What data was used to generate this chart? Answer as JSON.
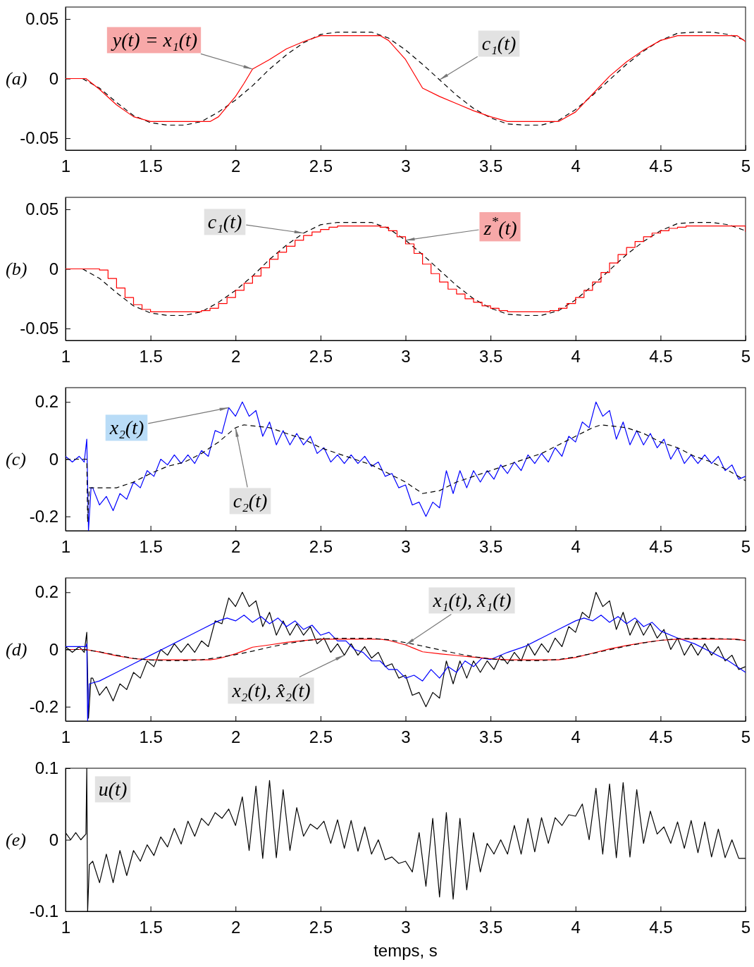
{
  "chart_data": [
    {
      "type": "line",
      "title": "(a)",
      "xlim": [
        1,
        5
      ],
      "xticks": [
        1,
        1.5,
        2,
        2.5,
        3,
        3.5,
        4,
        4.5,
        5
      ],
      "ylim": [
        -0.06,
        0.06
      ],
      "yticks": [
        -0.05,
        0,
        0.05
      ],
      "series": [
        {
          "color": "#000000",
          "line_style": "dashed",
          "x": [
            1,
            1.1,
            1.2,
            1.3,
            1.4,
            1.5,
            1.6,
            1.7,
            1.8,
            1.9,
            2,
            2.1,
            2.2,
            2.3,
            2.4,
            2.5,
            2.6,
            2.7,
            2.8,
            2.9,
            3,
            3.1,
            3.2,
            3.3,
            3.4,
            3.5,
            3.6,
            3.7,
            3.8,
            3.9,
            4,
            4.1,
            4.2,
            4.3,
            4.4,
            4.5,
            4.6,
            4.7,
            4.8,
            4.9,
            5
          ],
          "values": [
            0,
            0,
            -0.008,
            -0.02,
            -0.031,
            -0.037,
            -0.039,
            -0.039,
            -0.036,
            -0.028,
            -0.018,
            -0.006,
            0.008,
            0.02,
            0.03,
            0.037,
            0.039,
            0.039,
            0.039,
            0.034,
            0.024,
            0.012,
            -0.001,
            -0.014,
            -0.025,
            -0.033,
            -0.038,
            -0.039,
            -0.039,
            -0.035,
            -0.026,
            -0.014,
            -0.001,
            0.012,
            0.023,
            0.032,
            0.038,
            0.039,
            0.039,
            0.037,
            0.032
          ]
        },
        {
          "color": "#ff0000",
          "x": [
            1,
            1.12,
            1.2,
            1.3,
            1.4,
            1.5,
            1.85,
            1.9,
            2,
            2.05,
            2.1,
            2.2,
            2.3,
            2.4,
            2.5,
            2.85,
            2.9,
            3,
            3.05,
            3.1,
            3.2,
            3.3,
            3.4,
            3.5,
            3.6,
            3.9,
            4,
            4.1,
            4.2,
            4.3,
            4.4,
            4.5,
            4.6,
            4.95,
            5
          ],
          "values": [
            0,
            0,
            -0.009,
            -0.022,
            -0.032,
            -0.036,
            -0.036,
            -0.032,
            -0.015,
            -0.004,
            0.008,
            0.016,
            0.025,
            0.031,
            0.036,
            0.036,
            0.032,
            0.016,
            0.004,
            -0.008,
            -0.015,
            -0.021,
            -0.027,
            -0.032,
            -0.036,
            -0.036,
            -0.028,
            -0.013,
            0.002,
            0.014,
            0.024,
            0.032,
            0.036,
            0.036,
            0.031
          ]
        }
      ],
      "annotations": [
        {
          "text": "y(t) = x₁(t)",
          "x": 2.1,
          "y": 0.008
        },
        {
          "text": "c₁(t)",
          "x": 3.2,
          "y": -0.001
        }
      ]
    },
    {
      "type": "line",
      "title": "(b)",
      "xlim": [
        1,
        5
      ],
      "xticks": [
        1,
        1.5,
        2,
        2.5,
        3,
        3.5,
        4,
        4.5,
        5
      ],
      "ylim": [
        -0.06,
        0.06
      ],
      "yticks": [
        -0.05,
        0,
        0.05
      ],
      "series": [
        {
          "color": "#000000",
          "line_style": "dashed",
          "x": [
            1,
            1.1,
            1.2,
            1.3,
            1.4,
            1.5,
            1.6,
            1.7,
            1.8,
            1.9,
            2,
            2.1,
            2.2,
            2.3,
            2.4,
            2.5,
            2.6,
            2.7,
            2.8,
            2.9,
            3,
            3.1,
            3.2,
            3.3,
            3.4,
            3.5,
            3.6,
            3.7,
            3.8,
            3.9,
            4,
            4.1,
            4.2,
            4.3,
            4.4,
            4.5,
            4.6,
            4.7,
            4.8,
            4.9,
            5
          ],
          "values": [
            0,
            0,
            -0.008,
            -0.02,
            -0.031,
            -0.037,
            -0.039,
            -0.039,
            -0.036,
            -0.028,
            -0.018,
            -0.006,
            0.008,
            0.02,
            0.03,
            0.037,
            0.039,
            0.039,
            0.039,
            0.034,
            0.024,
            0.012,
            -0.001,
            -0.014,
            -0.025,
            -0.033,
            -0.038,
            -0.039,
            -0.039,
            -0.035,
            -0.026,
            -0.014,
            -0.001,
            0.012,
            0.023,
            0.032,
            0.038,
            0.039,
            0.039,
            0.037,
            0.032
          ]
        },
        {
          "type": "step",
          "color": "#ff0000",
          "x": [
            1,
            1.05,
            1.1,
            1.15,
            1.2,
            1.25,
            1.3,
            1.35,
            1.4,
            1.45,
            1.5,
            1.55,
            1.6,
            1.65,
            1.7,
            1.75,
            1.8,
            1.85,
            1.9,
            1.95,
            2,
            2.05,
            2.1,
            2.15,
            2.2,
            2.25,
            2.3,
            2.35,
            2.4,
            2.45,
            2.5,
            2.55,
            2.6,
            2.65,
            2.7,
            2.75,
            2.8,
            2.85,
            2.9,
            2.95,
            3,
            3.05,
            3.1,
            3.15,
            3.2,
            3.25,
            3.3,
            3.35,
            3.4,
            3.45,
            3.5,
            3.55,
            3.6,
            3.65,
            3.7,
            3.75,
            3.8,
            3.85,
            3.9,
            3.95,
            4,
            4.05,
            4.1,
            4.15,
            4.2,
            4.25,
            4.3,
            4.35,
            4.4,
            4.45,
            4.5,
            4.55,
            4.6,
            4.65,
            4.7,
            4.75,
            4.8,
            4.85,
            4.9,
            4.95,
            5
          ],
          "values": [
            0,
            0,
            0,
            0,
            -0.001,
            -0.008,
            -0.016,
            -0.024,
            -0.03,
            -0.034,
            -0.036,
            -0.036,
            -0.036,
            -0.036,
            -0.036,
            -0.036,
            -0.035,
            -0.033,
            -0.029,
            -0.024,
            -0.018,
            -0.012,
            -0.006,
            0.001,
            0.008,
            0.014,
            0.019,
            0.024,
            0.028,
            0.031,
            0.033,
            0.035,
            0.036,
            0.036,
            0.036,
            0.036,
            0.036,
            0.035,
            0.032,
            0.027,
            0.021,
            0.013,
            0.004,
            -0.004,
            -0.011,
            -0.017,
            -0.021,
            -0.025,
            -0.028,
            -0.031,
            -0.033,
            -0.035,
            -0.036,
            -0.036,
            -0.036,
            -0.036,
            -0.036,
            -0.035,
            -0.033,
            -0.029,
            -0.024,
            -0.018,
            -0.011,
            -0.003,
            0.005,
            0.012,
            0.018,
            0.023,
            0.027,
            0.03,
            0.032,
            0.034,
            0.035,
            0.036,
            0.036,
            0.036,
            0.036,
            0.036,
            0.036,
            0.036,
            0.031
          ]
        }
      ],
      "annotations": [
        {
          "text": "c₁(t)",
          "x": 2.4,
          "y": 0.03
        },
        {
          "text": "z$^{*}$(t)",
          "x": 3,
          "y": 0.024
        }
      ]
    },
    {
      "type": "line",
      "title": "(c)",
      "xlim": [
        1,
        5
      ],
      "xticks": [
        1,
        1.5,
        2,
        2.5,
        3,
        3.5,
        4,
        4.5,
        5
      ],
      "ylim": [
        -0.25,
        0.25
      ],
      "yticks": [
        -0.2,
        0,
        0.2
      ],
      "series": [
        {
          "color": "#0000ff",
          "x": [
            1,
            1.04,
            1.08,
            1.11,
            1.125,
            1.135,
            1.15,
            1.16,
            1.2,
            1.24,
            1.28,
            1.32,
            1.36,
            1.4,
            1.44,
            1.48,
            1.52,
            1.56,
            1.6,
            1.64,
            1.68,
            1.72,
            1.76,
            1.8,
            1.84,
            1.88,
            1.92,
            1.96,
            2,
            2.04,
            2.08,
            2.12,
            2.16,
            2.2,
            2.24,
            2.28,
            2.32,
            2.36,
            2.4,
            2.44,
            2.48,
            2.52,
            2.56,
            2.6,
            2.64,
            2.68,
            2.72,
            2.76,
            2.8,
            2.84,
            2.88,
            2.92,
            2.96,
            3,
            3.04,
            3.08,
            3.12,
            3.16,
            3.2,
            3.24,
            3.28,
            3.32,
            3.36,
            3.4,
            3.44,
            3.48,
            3.52,
            3.56,
            3.6,
            3.64,
            3.68,
            3.72,
            3.76,
            3.8,
            3.84,
            3.88,
            3.92,
            3.96,
            4,
            4.04,
            4.08,
            4.12,
            4.16,
            4.2,
            4.24,
            4.28,
            4.32,
            4.36,
            4.4,
            4.44,
            4.48,
            4.52,
            4.56,
            4.6,
            4.64,
            4.68,
            4.72,
            4.76,
            4.8,
            4.84,
            4.88,
            4.92,
            4.96,
            5
          ],
          "values": [
            0.01,
            -0.01,
            0.01,
            -0.01,
            0.07,
            -0.25,
            -0.1,
            -0.1,
            -0.16,
            -0.13,
            -0.18,
            -0.12,
            -0.14,
            -0.08,
            -0.1,
            -0.04,
            -0.06,
            0,
            -0.02,
            0.015,
            -0.015,
            0.015,
            -0.015,
            0.03,
            0.01,
            0.1,
            0.09,
            0.18,
            0.15,
            0.2,
            0.15,
            0.17,
            0.08,
            0.13,
            0.05,
            0.1,
            0.05,
            0.09,
            0.05,
            0.08,
            0.02,
            0.04,
            -0.01,
            0.015,
            -0.015,
            0.015,
            -0.015,
            0.01,
            -0.025,
            -0.01,
            -0.06,
            -0.05,
            -0.1,
            -0.09,
            -0.16,
            -0.15,
            -0.2,
            -0.15,
            -0.17,
            -0.04,
            -0.12,
            -0.04,
            -0.1,
            -0.04,
            -0.08,
            -0.04,
            -0.07,
            -0.02,
            -0.05,
            -0.01,
            -0.04,
            0.015,
            -0.015,
            0.02,
            -0.01,
            0.04,
            0.01,
            0.08,
            0.06,
            0.13,
            0.11,
            0.2,
            0.15,
            0.17,
            0.07,
            0.13,
            0.05,
            0.1,
            0.05,
            0.09,
            0.04,
            0.07,
            0,
            0.04,
            -0.015,
            0.015,
            -0.015,
            0.015,
            -0.015,
            0.01,
            -0.04,
            -0.02,
            -0.07,
            -0.06
          ]
        },
        {
          "color": "#000000",
          "line_style": "dashed",
          "x": [
            1,
            1.125,
            1.13,
            1.14,
            1.2,
            1.3,
            1.4,
            1.5,
            1.6,
            1.7,
            1.8,
            1.9,
            2,
            2.05,
            2.2,
            2.3,
            2.4,
            2.5,
            2.6,
            2.7,
            2.8,
            2.9,
            3,
            3.1,
            3.2,
            3.3,
            3.4,
            3.5,
            3.6,
            3.7,
            3.8,
            3.9,
            4,
            4.1,
            4.15,
            4.3,
            4.4,
            4.5,
            4.6,
            4.7,
            4.8,
            4.9,
            5
          ],
          "values": [
            0,
            0,
            -0.22,
            -0.1,
            -0.1,
            -0.1,
            -0.08,
            -0.05,
            -0.025,
            -0.01,
            0.02,
            0.06,
            0.11,
            0.12,
            0.11,
            0.09,
            0.07,
            0.04,
            0.02,
            0,
            -0.02,
            -0.05,
            -0.08,
            -0.12,
            -0.11,
            -0.08,
            -0.06,
            -0.04,
            -0.02,
            0,
            0.02,
            0.05,
            0.08,
            0.11,
            0.12,
            0.11,
            0.09,
            0.06,
            0.04,
            0.01,
            -0.01,
            -0.04,
            -0.075
          ]
        }
      ],
      "annotations": [
        {
          "text": "x₂(t)",
          "x": 1.96,
          "y": 0.18
        },
        {
          "text": "c₂(t)",
          "x": 2,
          "y": 0.11
        }
      ]
    },
    {
      "type": "line",
      "title": "(d)",
      "xlim": [
        1,
        5
      ],
      "xticks": [
        1,
        1.5,
        2,
        2.5,
        3,
        3.5,
        4,
        4.5,
        5
      ],
      "ylim": [
        -0.25,
        0.25
      ],
      "yticks": [
        -0.2,
        0,
        0.2
      ],
      "series": [
        {
          "color": "#000000",
          "x": [
            1,
            1.04,
            1.08,
            1.11,
            1.125,
            1.135,
            1.15,
            1.16,
            1.2,
            1.24,
            1.28,
            1.32,
            1.36,
            1.4,
            1.44,
            1.48,
            1.52,
            1.56,
            1.6,
            1.64,
            1.68,
            1.72,
            1.76,
            1.8,
            1.84,
            1.88,
            1.92,
            1.96,
            2,
            2.04,
            2.08,
            2.12,
            2.16,
            2.2,
            2.24,
            2.28,
            2.32,
            2.36,
            2.4,
            2.44,
            2.48,
            2.52,
            2.56,
            2.6,
            2.64,
            2.68,
            2.72,
            2.76,
            2.8,
            2.84,
            2.88,
            2.92,
            2.96,
            3,
            3.04,
            3.08,
            3.12,
            3.16,
            3.2,
            3.24,
            3.28,
            3.32,
            3.36,
            3.4,
            3.44,
            3.48,
            3.52,
            3.56,
            3.6,
            3.64,
            3.68,
            3.72,
            3.76,
            3.8,
            3.84,
            3.88,
            3.92,
            3.96,
            4,
            4.04,
            4.08,
            4.12,
            4.16,
            4.2,
            4.24,
            4.28,
            4.32,
            4.36,
            4.4,
            4.44,
            4.48,
            4.52,
            4.56,
            4.6,
            4.64,
            4.68,
            4.72,
            4.76,
            4.8,
            4.84,
            4.88,
            4.92,
            4.96,
            5
          ],
          "values": [
            0.01,
            -0.01,
            0.01,
            -0.01,
            0.06,
            -0.24,
            -0.1,
            -0.1,
            -0.16,
            -0.13,
            -0.18,
            -0.12,
            -0.14,
            -0.08,
            -0.1,
            -0.04,
            -0.06,
            0,
            -0.02,
            0.02,
            -0.01,
            0.02,
            -0.01,
            0.03,
            0.01,
            0.1,
            0.09,
            0.18,
            0.15,
            0.2,
            0.15,
            0.17,
            0.08,
            0.13,
            0.05,
            0.1,
            0.05,
            0.09,
            0.05,
            0.08,
            0.02,
            0.04,
            -0.01,
            0.02,
            -0.02,
            0.02,
            -0.02,
            0.01,
            -0.03,
            -0.01,
            -0.06,
            -0.05,
            -0.1,
            -0.09,
            -0.16,
            -0.15,
            -0.2,
            -0.15,
            -0.17,
            -0.04,
            -0.12,
            -0.04,
            -0.1,
            -0.04,
            -0.08,
            -0.04,
            -0.07,
            -0.02,
            -0.05,
            -0.01,
            -0.04,
            0.02,
            -0.02,
            0.02,
            -0.01,
            0.04,
            0.01,
            0.08,
            0.06,
            0.13,
            0.11,
            0.2,
            0.15,
            0.17,
            0.07,
            0.13,
            0.05,
            0.1,
            0.05,
            0.09,
            0.04,
            0.07,
            0,
            0.04,
            -0.02,
            0.02,
            -0.02,
            0.02,
            -0.02,
            0.01,
            -0.04,
            -0.02,
            -0.07,
            -0.06
          ]
        },
        {
          "color": "#0000ff",
          "x": [
            1,
            1.12,
            1.125,
            1.13,
            1.14,
            1.2,
            1.3,
            1.4,
            1.5,
            1.6,
            1.7,
            1.8,
            1.9,
            1.95,
            2,
            2.05,
            2.1,
            2.15,
            2.2,
            2.25,
            2.3,
            2.35,
            2.4,
            2.45,
            2.5,
            2.55,
            2.6,
            2.65,
            2.7,
            2.75,
            2.8,
            2.85,
            2.9,
            2.95,
            3,
            3.05,
            3.1,
            3.15,
            3.2,
            3.25,
            3.3,
            3.35,
            3.4,
            3.45,
            3.5,
            3.6,
            3.7,
            3.8,
            3.9,
            4,
            4.05,
            4.1,
            4.15,
            4.2,
            4.25,
            4.3,
            4.35,
            4.4,
            4.45,
            4.5,
            4.6,
            4.7,
            4.8,
            4.9,
            5
          ],
          "values": [
            0.01,
            0.01,
            0.02,
            -0.25,
            -0.12,
            -0.11,
            -0.08,
            -0.05,
            -0.02,
            0.01,
            0.04,
            0.07,
            0.1,
            0.11,
            0.1,
            0.12,
            0.095,
            0.115,
            0.09,
            0.11,
            0.08,
            0.1,
            0.07,
            0.085,
            0.05,
            0.06,
            0.03,
            0.03,
            0,
            -0.01,
            -0.04,
            -0.04,
            -0.07,
            -0.07,
            -0.1,
            -0.09,
            -0.11,
            -0.07,
            -0.1,
            -0.06,
            -0.08,
            -0.04,
            -0.06,
            -0.03,
            -0.035,
            -0.01,
            0.01,
            0.04,
            0.07,
            0.1,
            0.11,
            0.1,
            0.12,
            0.095,
            0.115,
            0.09,
            0.11,
            0.08,
            0.095,
            0.065,
            0.04,
            0.02,
            -0.01,
            -0.04,
            -0.08
          ]
        },
        {
          "color": "#ff0000",
          "x": [
            1,
            1.12,
            1.2,
            1.3,
            1.4,
            1.5,
            1.85,
            1.9,
            2,
            2.05,
            2.1,
            2.2,
            2.3,
            2.4,
            2.5,
            2.85,
            2.9,
            3,
            3.05,
            3.1,
            3.2,
            3.3,
            3.4,
            3.5,
            3.6,
            3.9,
            4,
            4.1,
            4.2,
            4.3,
            4.4,
            4.5,
            4.6,
            4.95,
            5
          ],
          "values": [
            0,
            0,
            -0.009,
            -0.022,
            -0.032,
            -0.036,
            -0.036,
            -0.032,
            -0.015,
            -0.004,
            0.008,
            0.016,
            0.025,
            0.031,
            0.036,
            0.036,
            0.032,
            0.016,
            0.004,
            -0.008,
            -0.015,
            -0.021,
            -0.027,
            -0.032,
            -0.036,
            -0.036,
            -0.028,
            -0.013,
            0.002,
            0.014,
            0.024,
            0.032,
            0.036,
            0.036,
            0.031
          ]
        },
        {
          "color": "#000000",
          "line_style": "dashed",
          "x": [
            1,
            1.1,
            1.2,
            1.3,
            1.4,
            1.5,
            1.6,
            1.7,
            1.8,
            1.9,
            2,
            2.1,
            2.2,
            2.3,
            2.4,
            2.5,
            2.6,
            2.7,
            2.8,
            2.9,
            3,
            3.1,
            3.2,
            3.3,
            3.4,
            3.5,
            3.6,
            3.7,
            3.8,
            3.9,
            4,
            4.1,
            4.2,
            4.3,
            4.4,
            4.5,
            4.6,
            4.7,
            4.8,
            4.9,
            5
          ],
          "values": [
            0,
            0,
            -0.008,
            -0.02,
            -0.031,
            -0.037,
            -0.039,
            -0.039,
            -0.036,
            -0.028,
            -0.018,
            -0.006,
            0.008,
            0.02,
            0.03,
            0.037,
            0.039,
            0.039,
            0.039,
            0.034,
            0.024,
            0.012,
            -0.001,
            -0.014,
            -0.025,
            -0.033,
            -0.038,
            -0.039,
            -0.039,
            -0.035,
            -0.026,
            -0.014,
            -0.001,
            0.012,
            0.023,
            0.032,
            0.038,
            0.039,
            0.039,
            0.037,
            0.032
          ]
        }
      ],
      "annotations": [
        {
          "text": "x₁(t), x̂₁(t)",
          "x": 3,
          "y": 0.016
        },
        {
          "text": "x₂(t), x̂₂(t)",
          "x": 2.64,
          "y": -0.02
        }
      ]
    },
    {
      "type": "line",
      "title": "(e)",
      "xlabel": "temps, s",
      "xlim": [
        1,
        5
      ],
      "xticks": [
        1,
        1.5,
        2,
        2.5,
        3,
        3.5,
        4,
        4.5,
        5
      ],
      "ylim": [
        -0.1,
        0.1
      ],
      "yticks": [
        -0.1,
        0,
        0.1
      ],
      "series": [
        {
          "color": "#000000",
          "x": [
            1,
            1.03,
            1.06,
            1.09,
            1.12,
            1.125,
            1.13,
            1.14,
            1.16,
            1.2,
            1.24,
            1.28,
            1.32,
            1.36,
            1.4,
            1.44,
            1.48,
            1.52,
            1.56,
            1.6,
            1.64,
            1.68,
            1.72,
            1.76,
            1.8,
            1.84,
            1.88,
            1.92,
            1.96,
            2,
            2.04,
            2.08,
            2.12,
            2.16,
            2.2,
            2.24,
            2.28,
            2.32,
            2.36,
            2.4,
            2.44,
            2.48,
            2.52,
            2.56,
            2.6,
            2.64,
            2.68,
            2.72,
            2.76,
            2.8,
            2.84,
            2.88,
            2.92,
            2.96,
            3,
            3.04,
            3.08,
            3.12,
            3.16,
            3.2,
            3.24,
            3.28,
            3.32,
            3.36,
            3.4,
            3.44,
            3.48,
            3.52,
            3.56,
            3.6,
            3.64,
            3.68,
            3.72,
            3.76,
            3.8,
            3.84,
            3.88,
            3.92,
            3.96,
            4,
            4.04,
            4.08,
            4.12,
            4.16,
            4.2,
            4.24,
            4.28,
            4.32,
            4.36,
            4.4,
            4.44,
            4.48,
            4.52,
            4.56,
            4.6,
            4.64,
            4.68,
            4.72,
            4.76,
            4.8,
            4.84,
            4.88,
            4.92,
            4.96,
            5
          ],
          "values": [
            0.01,
            0,
            0.01,
            0,
            0.008,
            0.1,
            -0.1,
            -0.035,
            -0.03,
            -0.06,
            -0.02,
            -0.06,
            -0.015,
            -0.05,
            -0.015,
            -0.03,
            -0.007,
            -0.022,
            0.004,
            -0.01,
            0.016,
            -0.006,
            0.026,
            0.005,
            0.03,
            0.02,
            0.038,
            0.03,
            0.043,
            0.02,
            0.06,
            -0.015,
            0.075,
            -0.026,
            0.083,
            -0.025,
            0.07,
            -0.015,
            0.045,
            0.005,
            0.022,
            0.015,
            0.026,
            -0.005,
            0.028,
            -0.012,
            0.027,
            -0.016,
            0.018,
            -0.02,
            0,
            -0.028,
            -0.024,
            -0.033,
            -0.03,
            -0.045,
            0.01,
            -0.065,
            0.03,
            -0.08,
            0.038,
            -0.083,
            0.03,
            -0.07,
            0.01,
            -0.045,
            -0.005,
            -0.02,
            0,
            -0.02,
            0.02,
            -0.02,
            0.03,
            -0.017,
            0.031,
            -0.005,
            0.031,
            0.02,
            0.035,
            0.033,
            0.05,
            0,
            0.072,
            -0.02,
            0.078,
            -0.025,
            0.08,
            -0.024,
            0.07,
            -0.005,
            0.04,
            0.008,
            0.018,
            -0.005,
            0.025,
            -0.012,
            0.027,
            -0.018,
            0.025,
            -0.024,
            0.015,
            -0.025,
            0,
            -0.026,
            -0.026
          ]
        }
      ],
      "annotations": [
        "u(t)"
      ]
    }
  ]
}
